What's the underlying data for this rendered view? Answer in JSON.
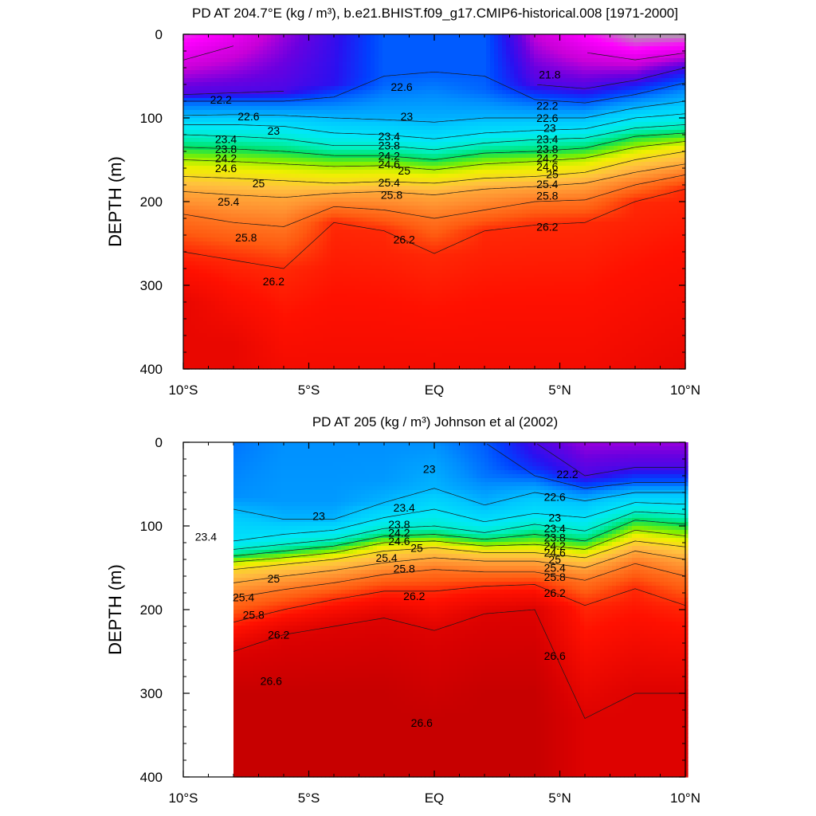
{
  "colors": {
    "levels": [
      21.8,
      22.2,
      22.6,
      23.0,
      23.4,
      23.8,
      24.2,
      24.6,
      25.0,
      25.4,
      25.8,
      26.2,
      26.6
    ],
    "scale": [
      {
        "v": 21.3,
        "c": "#a9a9a9"
      },
      {
        "v": 21.6,
        "c": "#ff00ff"
      },
      {
        "v": 21.9,
        "c": "#c800d8"
      },
      {
        "v": 22.1,
        "c": "#6a00e0"
      },
      {
        "v": 22.3,
        "c": "#2a10f0"
      },
      {
        "v": 22.5,
        "c": "#0040ff"
      },
      {
        "v": 22.8,
        "c": "#0090ff"
      },
      {
        "v": 23.1,
        "c": "#00c8ff"
      },
      {
        "v": 23.5,
        "c": "#00e8f8"
      },
      {
        "v": 23.9,
        "c": "#00f0c0"
      },
      {
        "v": 24.2,
        "c": "#00e060"
      },
      {
        "v": 24.5,
        "c": "#80f000"
      },
      {
        "v": 24.8,
        "c": "#f0f000"
      },
      {
        "v": 25.2,
        "c": "#ffc040"
      },
      {
        "v": 25.6,
        "c": "#ff9030"
      },
      {
        "v": 26.0,
        "c": "#ff5a10"
      },
      {
        "v": 26.3,
        "c": "#ff1000"
      },
      {
        "v": 26.65,
        "c": "#d80000"
      },
      {
        "v": 27.0,
        "c": "#b00000"
      }
    ]
  },
  "chart_data": [
    {
      "type": "heatmap",
      "title": "PD AT 204.7°E (kg / m³), b.e21.BHIST.f09_g17.CMIP6-historical.008 [1971-2000]",
      "xlabel": "",
      "ylabel": "DEPTH (m)",
      "x_ticks": [
        "10°S",
        "5°S",
        "EQ",
        "5°N",
        "10°N"
      ],
      "y_ticks": [
        "0",
        "100",
        "200",
        "300",
        "400"
      ],
      "xlim": [
        -10,
        10
      ],
      "ylim": [
        0,
        400
      ],
      "contour_levels": [
        21.8,
        22.2,
        22.6,
        23.0,
        23.4,
        23.8,
        24.2,
        24.6,
        25.0,
        25.4,
        25.8,
        26.2
      ],
      "lat": [
        -10,
        -8,
        -6,
        -4,
        -2,
        0,
        2,
        4,
        6,
        8,
        10
      ],
      "profiles": [
        {
          "d": [
            0,
            72,
            80,
            97,
            108,
            120,
            135,
            150,
            170,
            188,
            215,
            260,
            320
          ],
          "v": [
            21.5,
            22.2,
            22.6,
            23.0,
            23.4,
            23.8,
            24.2,
            24.6,
            25.0,
            25.4,
            25.8,
            26.2,
            26.5
          ]
        },
        {
          "d": [
            0,
            70,
            80,
            96,
            108,
            122,
            137,
            152,
            172,
            192,
            225,
            270,
            370
          ],
          "v": [
            21.7,
            22.2,
            22.6,
            23.0,
            23.4,
            23.8,
            24.2,
            24.6,
            25.0,
            25.4,
            25.8,
            26.2,
            26.5
          ]
        },
        {
          "d": [
            0,
            68,
            80,
            97,
            110,
            125,
            140,
            155,
            175,
            195,
            230,
            280,
            400
          ],
          "v": [
            22.0,
            22.2,
            22.6,
            23.0,
            23.4,
            23.8,
            24.2,
            24.6,
            25.0,
            25.4,
            25.8,
            26.2,
            26.4
          ]
        },
        {
          "d": [
            0,
            60,
            75,
            100,
            118,
            133,
            145,
            158,
            178,
            190,
            206,
            225,
            400
          ],
          "v": [
            22.25,
            22.3,
            22.6,
            23.0,
            23.4,
            23.8,
            24.2,
            24.6,
            25.0,
            25.4,
            25.8,
            26.2,
            26.4
          ]
        },
        {
          "d": [
            0,
            50,
            62,
            102,
            120,
            133,
            145,
            157,
            176,
            188,
            210,
            235,
            400
          ],
          "v": [
            22.6,
            22.6,
            22.65,
            23.0,
            23.4,
            23.8,
            24.2,
            24.6,
            25.0,
            25.4,
            25.8,
            26.2,
            26.4
          ]
        },
        {
          "d": [
            0,
            45,
            60,
            105,
            125,
            138,
            150,
            162,
            178,
            192,
            220,
            262,
            400
          ],
          "v": [
            22.6,
            22.6,
            22.7,
            23.0,
            23.4,
            23.8,
            24.2,
            24.6,
            25.0,
            25.4,
            25.8,
            26.2,
            26.4
          ]
        },
        {
          "d": [
            0,
            50,
            68,
            100,
            118,
            130,
            142,
            155,
            172,
            185,
            210,
            235,
            400
          ],
          "v": [
            22.6,
            22.6,
            22.65,
            23.0,
            23.4,
            23.8,
            24.2,
            24.6,
            25.0,
            25.4,
            25.8,
            26.2,
            26.4
          ]
        },
        {
          "d": [
            0,
            60,
            78,
            100,
            115,
            126,
            140,
            152,
            170,
            182,
            200,
            228,
            400
          ],
          "v": [
            21.9,
            22.2,
            22.6,
            23.0,
            23.4,
            23.8,
            24.2,
            24.6,
            25.0,
            25.4,
            25.8,
            26.2,
            26.4
          ]
        },
        {
          "d": [
            0,
            65,
            82,
            100,
            113,
            124,
            136,
            148,
            165,
            178,
            198,
            225,
            400
          ],
          "v": [
            21.6,
            22.2,
            22.6,
            23.0,
            23.4,
            23.8,
            24.2,
            24.6,
            25.0,
            25.4,
            25.8,
            26.2,
            26.4
          ]
        },
        {
          "d": [
            0,
            55,
            72,
            88,
            100,
            112,
            122,
            135,
            150,
            165,
            180,
            200,
            400
          ],
          "v": [
            21.3,
            22.2,
            22.6,
            23.0,
            23.4,
            23.8,
            24.2,
            24.6,
            25.0,
            25.4,
            25.8,
            26.2,
            26.45
          ]
        },
        {
          "d": [
            0,
            40,
            58,
            80,
            95,
            108,
            118,
            128,
            140,
            155,
            168,
            185,
            400
          ],
          "v": [
            21.3,
            22.2,
            22.6,
            23.0,
            23.4,
            23.8,
            24.2,
            24.6,
            25.0,
            25.4,
            25.8,
            26.2,
            26.5
          ]
        }
      ]
    },
    {
      "type": "heatmap",
      "title": "PD AT 205 (kg / m³) Johnson et al (2002)",
      "xlabel": "",
      "ylabel": "DEPTH (m)",
      "x_ticks": [
        "10°S",
        "5°S",
        "EQ",
        "5°N",
        "10°N"
      ],
      "y_ticks": [
        "0",
        "100",
        "200",
        "300",
        "400"
      ],
      "xlim": [
        -10,
        10
      ],
      "ylim": [
        0,
        400
      ],
      "data_start_lat": -8,
      "contour_levels": [
        22.2,
        22.6,
        23.0,
        23.4,
        23.8,
        24.2,
        24.6,
        25.0,
        25.4,
        25.8,
        26.2,
        26.6
      ],
      "lat": [
        -8,
        -6,
        -4,
        -2,
        0,
        2,
        4,
        6,
        8,
        10
      ],
      "profiles": [
        {
          "d": [
            0,
            65,
            95,
            118,
            128,
            136,
            143,
            152,
            168,
            186,
            215,
            250,
            300
          ],
          "v": [
            22.7,
            22.8,
            23.2,
            23.4,
            23.8,
            24.2,
            24.6,
            25.0,
            25.4,
            25.8,
            26.2,
            26.6,
            26.8
          ]
        },
        {
          "d": [
            0,
            70,
            92,
            110,
            122,
            130,
            138,
            146,
            160,
            176,
            200,
            230,
            300
          ],
          "v": [
            22.8,
            22.85,
            23.0,
            23.4,
            23.8,
            24.2,
            24.6,
            25.0,
            25.4,
            25.8,
            26.2,
            26.6,
            26.8
          ]
        },
        {
          "d": [
            0,
            70,
            92,
            105,
            116,
            124,
            132,
            140,
            153,
            168,
            188,
            220,
            300
          ],
          "v": [
            22.8,
            22.85,
            23.0,
            23.4,
            23.8,
            24.2,
            24.6,
            25.0,
            25.4,
            25.8,
            26.2,
            26.6,
            26.8
          ]
        },
        {
          "d": [
            0,
            45,
            72,
            90,
            103,
            112,
            120,
            130,
            144,
            158,
            178,
            210,
            300
          ],
          "v": [
            22.8,
            22.85,
            23.0,
            23.4,
            23.8,
            24.2,
            24.6,
            25.0,
            25.4,
            25.8,
            26.2,
            26.6,
            26.8
          ]
        },
        {
          "d": [
            0,
            25,
            55,
            80,
            100,
            110,
            118,
            126,
            138,
            152,
            178,
            225,
            330
          ],
          "v": [
            22.8,
            22.9,
            23.0,
            23.4,
            23.8,
            24.2,
            24.6,
            25.0,
            25.4,
            25.8,
            26.2,
            26.6,
            26.8
          ]
        },
        {
          "d": [
            0,
            40,
            75,
            95,
            108,
            116,
            124,
            132,
            142,
            155,
            172,
            205,
            300
          ],
          "v": [
            22.6,
            22.7,
            23.0,
            23.4,
            23.8,
            24.2,
            24.6,
            25.0,
            25.4,
            25.8,
            26.2,
            26.6,
            26.8
          ]
        },
        {
          "d": [
            0,
            30,
            60,
            85,
            98,
            110,
            122,
            132,
            142,
            155,
            170,
            200,
            300
          ],
          "v": [
            22.2,
            22.4,
            23.0,
            23.4,
            23.8,
            24.2,
            24.6,
            25.0,
            25.4,
            25.8,
            26.2,
            26.6,
            26.8
          ]
        },
        {
          "d": [
            0,
            40,
            55,
            70,
            90,
            106,
            118,
            128,
            138,
            150,
            165,
            195,
            330
          ],
          "v": [
            22.0,
            22.2,
            22.6,
            23.0,
            23.4,
            23.8,
            24.2,
            24.6,
            25.0,
            25.4,
            25.8,
            26.2,
            26.6
          ]
        },
        {
          "d": [
            0,
            30,
            48,
            60,
            72,
            83,
            93,
            105,
            118,
            130,
            145,
            175,
            300
          ],
          "v": [
            22.0,
            22.2,
            22.6,
            23.0,
            23.4,
            23.8,
            24.2,
            24.6,
            25.0,
            25.4,
            25.8,
            26.2,
            26.6
          ]
        },
        {
          "d": [
            0,
            30,
            48,
            60,
            74,
            86,
            98,
            112,
            125,
            140,
            160,
            195,
            300
          ],
          "v": [
            22.0,
            22.2,
            22.6,
            23.0,
            23.4,
            23.8,
            24.2,
            24.6,
            25.0,
            25.4,
            25.8,
            26.2,
            26.6
          ]
        }
      ]
    }
  ],
  "labels": [
    {
      "panel": 0,
      "text": "21.8",
      "lat": 4.6,
      "depth": 48
    },
    {
      "panel": 0,
      "text": "22.2",
      "lat": -8.5,
      "depth": 78
    },
    {
      "panel": 0,
      "text": "22.6",
      "lat": -1.3,
      "depth": 63
    },
    {
      "panel": 0,
      "text": "22.2",
      "lat": 4.5,
      "depth": 85
    },
    {
      "panel": 0,
      "text": "22.6",
      "lat": -7.4,
      "depth": 98
    },
    {
      "panel": 0,
      "text": "22.6",
      "lat": 4.5,
      "depth": 100
    },
    {
      "panel": 0,
      "text": "23",
      "lat": -6.4,
      "depth": 115
    },
    {
      "panel": 0,
      "text": "23",
      "lat": -1.1,
      "depth": 98
    },
    {
      "panel": 0,
      "text": "23",
      "lat": 4.6,
      "depth": 112
    },
    {
      "panel": 0,
      "text": "23.4",
      "lat": -8.3,
      "depth": 125
    },
    {
      "panel": 0,
      "text": "23.4",
      "lat": -1.8,
      "depth": 122
    },
    {
      "panel": 0,
      "text": "23.4",
      "lat": 4.5,
      "depth": 125
    },
    {
      "panel": 0,
      "text": "23.8",
      "lat": -8.3,
      "depth": 137
    },
    {
      "panel": 0,
      "text": "23.8",
      "lat": -1.8,
      "depth": 133
    },
    {
      "panel": 0,
      "text": "23.8",
      "lat": 4.5,
      "depth": 137
    },
    {
      "panel": 0,
      "text": "24.2",
      "lat": -8.3,
      "depth": 148
    },
    {
      "panel": 0,
      "text": "24.2",
      "lat": -1.8,
      "depth": 145
    },
    {
      "panel": 0,
      "text": "24.2",
      "lat": 4.5,
      "depth": 148
    },
    {
      "panel": 0,
      "text": "24.6",
      "lat": -8.3,
      "depth": 160
    },
    {
      "panel": 0,
      "text": "24.6",
      "lat": -1.8,
      "depth": 155
    },
    {
      "panel": 0,
      "text": "24.6",
      "lat": 4.5,
      "depth": 158
    },
    {
      "panel": 0,
      "text": "25",
      "lat": -7.0,
      "depth": 178
    },
    {
      "panel": 0,
      "text": "25",
      "lat": -1.2,
      "depth": 163
    },
    {
      "panel": 0,
      "text": "25",
      "lat": 4.7,
      "depth": 167
    },
    {
      "panel": 0,
      "text": "25.4",
      "lat": -8.2,
      "depth": 200
    },
    {
      "panel": 0,
      "text": "25.4",
      "lat": -1.8,
      "depth": 177
    },
    {
      "panel": 0,
      "text": "25.4",
      "lat": 4.5,
      "depth": 179
    },
    {
      "panel": 0,
      "text": "25.8",
      "lat": -7.5,
      "depth": 243
    },
    {
      "panel": 0,
      "text": "25.8",
      "lat": -1.7,
      "depth": 192
    },
    {
      "panel": 0,
      "text": "25.8",
      "lat": 4.5,
      "depth": 193
    },
    {
      "panel": 0,
      "text": "26.2",
      "lat": -6.4,
      "depth": 295
    },
    {
      "panel": 0,
      "text": "26.2",
      "lat": -1.2,
      "depth": 245
    },
    {
      "panel": 0,
      "text": "26.2",
      "lat": 4.5,
      "depth": 230
    },
    {
      "panel": 1,
      "text": "22.2",
      "lat": 5.3,
      "depth": 38
    },
    {
      "panel": 1,
      "text": "22.6",
      "lat": 4.8,
      "depth": 65
    },
    {
      "panel": 1,
      "text": "23",
      "lat": -0.2,
      "depth": 32
    },
    {
      "panel": 1,
      "text": "23",
      "lat": -4.6,
      "depth": 88
    },
    {
      "panel": 1,
      "text": "23",
      "lat": 4.8,
      "depth": 90
    },
    {
      "panel": 1,
      "text": "23.4",
      "lat": -1.2,
      "depth": 78
    },
    {
      "panel": 1,
      "text": "23.4",
      "lat": -9.1,
      "depth": 113
    },
    {
      "panel": 1,
      "text": "23.4",
      "lat": 4.8,
      "depth": 103
    },
    {
      "panel": 1,
      "text": "23.8",
      "lat": -1.4,
      "depth": 98
    },
    {
      "panel": 1,
      "text": "23.8",
      "lat": 4.8,
      "depth": 114
    },
    {
      "panel": 1,
      "text": "24.2",
      "lat": -1.4,
      "depth": 108
    },
    {
      "panel": 1,
      "text": "24.2",
      "lat": 4.8,
      "depth": 124
    },
    {
      "panel": 1,
      "text": "24.6",
      "lat": -1.4,
      "depth": 118
    },
    {
      "panel": 1,
      "text": "24.6",
      "lat": 4.8,
      "depth": 132
    },
    {
      "panel": 1,
      "text": "25",
      "lat": -0.7,
      "depth": 126
    },
    {
      "panel": 1,
      "text": "25",
      "lat": 4.8,
      "depth": 140
    },
    {
      "panel": 1,
      "text": "25",
      "lat": -6.4,
      "depth": 163
    },
    {
      "panel": 1,
      "text": "25.4",
      "lat": -1.9,
      "depth": 138
    },
    {
      "panel": 1,
      "text": "25.4",
      "lat": 4.8,
      "depth": 150
    },
    {
      "panel": 1,
      "text": "25.4",
      "lat": -7.6,
      "depth": 185
    },
    {
      "panel": 1,
      "text": "25.8",
      "lat": -1.2,
      "depth": 151
    },
    {
      "panel": 1,
      "text": "25.8",
      "lat": 4.8,
      "depth": 161
    },
    {
      "panel": 1,
      "text": "25.8",
      "lat": -7.2,
      "depth": 206
    },
    {
      "panel": 1,
      "text": "26.2",
      "lat": -0.8,
      "depth": 184
    },
    {
      "panel": 1,
      "text": "26.2",
      "lat": 4.8,
      "depth": 180
    },
    {
      "panel": 1,
      "text": "26.2",
      "lat": -6.2,
      "depth": 230
    },
    {
      "panel": 1,
      "text": "26.6",
      "lat": 4.8,
      "depth": 255
    },
    {
      "panel": 1,
      "text": "26.6",
      "lat": -6.5,
      "depth": 285
    },
    {
      "panel": 1,
      "text": "26.6",
      "lat": -0.5,
      "depth": 335
    }
  ]
}
